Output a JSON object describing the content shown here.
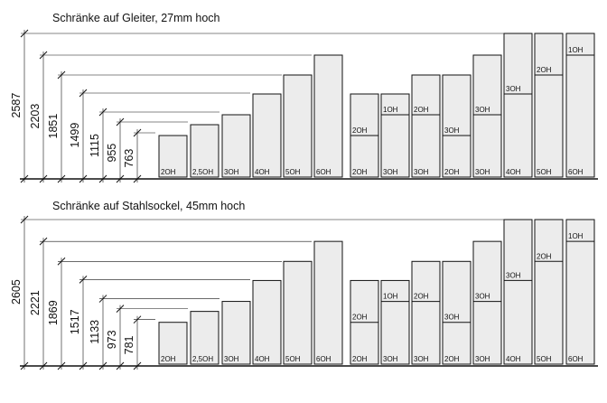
{
  "sections": [
    {
      "title": "Schränke auf Gleiter, 27mm hoch",
      "dimensions": [
        "2587",
        "2203",
        "1851",
        "1499",
        "1115",
        "955",
        "763"
      ],
      "single_units": [
        "2OH",
        "2,5OH",
        "3OH",
        "4OH",
        "5OH",
        "6OH"
      ],
      "stacked_units": [
        {
          "bottom": "2OH",
          "top": "2OH"
        },
        {
          "bottom": "3OH",
          "top": "1OH"
        },
        {
          "bottom": "3OH",
          "top": "2OH"
        },
        {
          "bottom": "2OH",
          "top": "3OH"
        },
        {
          "bottom": "3OH",
          "top": "3OH"
        },
        {
          "bottom": "4OH",
          "top": "3OH"
        },
        {
          "bottom": "5OH",
          "top": "2OH"
        },
        {
          "bottom": "6OH",
          "top": "1OH"
        }
      ]
    },
    {
      "title": "Schränke auf Stahlsockel, 45mm hoch",
      "dimensions": [
        "2605",
        "2221",
        "1869",
        "1517",
        "1133",
        "973",
        "781"
      ],
      "single_units": [
        "2OH",
        "2,5OH",
        "3OH",
        "4OH",
        "5OH",
        "6OH"
      ],
      "stacked_units": [
        {
          "bottom": "2OH",
          "top": "2OH"
        },
        {
          "bottom": "3OH",
          "top": "1OH"
        },
        {
          "bottom": "3OH",
          "top": "2OH"
        },
        {
          "bottom": "2OH",
          "top": "3OH"
        },
        {
          "bottom": "3OH",
          "top": "3OH"
        },
        {
          "bottom": "4OH",
          "top": "3OH"
        },
        {
          "bottom": "5OH",
          "top": "2OH"
        },
        {
          "bottom": "6OH",
          "top": "1OH"
        }
      ]
    }
  ]
}
